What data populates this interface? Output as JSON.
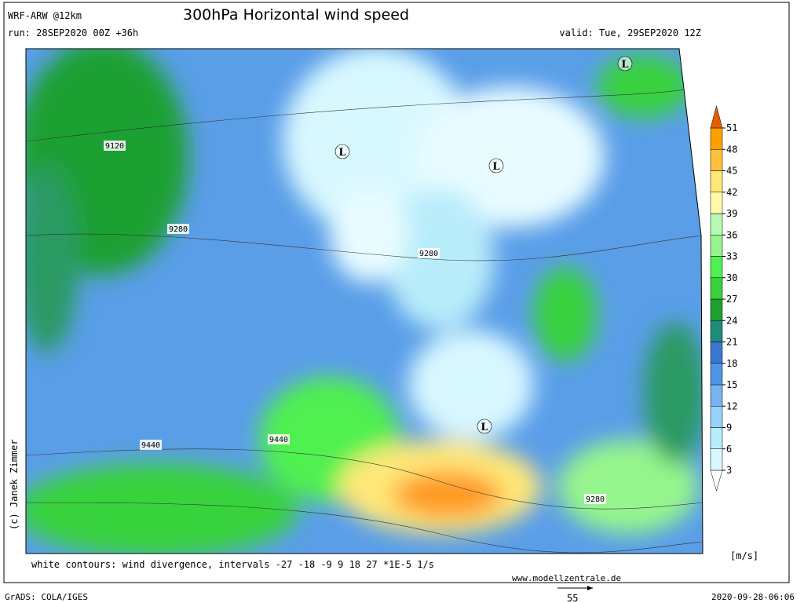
{
  "header": {
    "model": "WRF-ARW @12km",
    "title": "300hPa Horizontal wind speed",
    "run": "run: 28SEP2020 00Z +36h",
    "valid": "valid: Tue, 29SEP2020 12Z"
  },
  "legend": {
    "unit": "[m/s]",
    "levels": [
      3,
      6,
      9,
      12,
      15,
      18,
      21,
      24,
      27,
      30,
      33,
      36,
      39,
      42,
      45,
      48,
      51
    ],
    "colors": [
      "#ffffff",
      "#d8f8ff",
      "#b8ecfa",
      "#96d2fa",
      "#78b4f0",
      "#5096e6",
      "#3c78d2",
      "#1e8c78",
      "#1ea032",
      "#37d23c",
      "#50f050",
      "#96f58c",
      "#b4fab4",
      "#fffaaa",
      "#ffe878",
      "#ffc03c",
      "#ffa000",
      "#e06000"
    ]
  },
  "map": {
    "contour_labels": [
      "9120",
      "9280",
      "9280",
      "9440",
      "9440",
      "9280"
    ],
    "lows": [
      "L",
      "L",
      "L",
      "L"
    ],
    "reference_vector": "55"
  },
  "footer": {
    "note": "white contours: wind divergence, intervals -27 -18 -9 9 18 27 *1E-5 1/s",
    "website": "www.modellzentrale.de",
    "software": "GrADS: COLA/IGES",
    "timestamp": "2020-09-28-06:06",
    "copyright": "(c) Janek Zimmer"
  }
}
